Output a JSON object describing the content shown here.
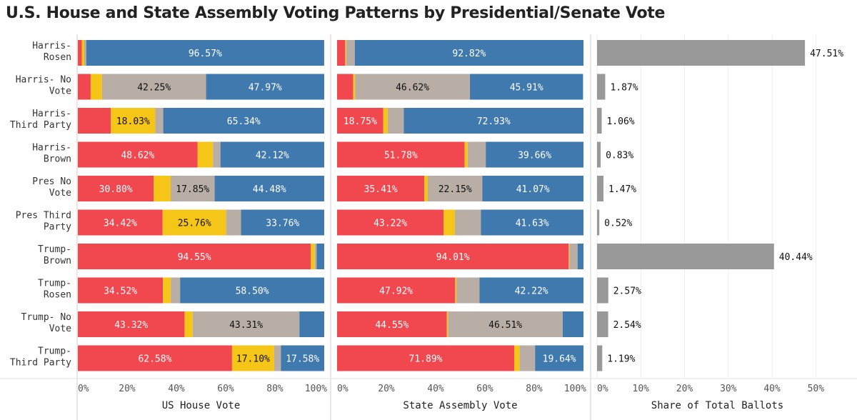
{
  "title": "U.S. House and State Assembly Voting Patterns by Presidential/Senate Vote",
  "colors": {
    "red": "#f1474f",
    "yellow": "#f5c518",
    "gray": "#b8aea6",
    "blue": "#3f79ad",
    "share": "#999999",
    "label_light": "#ffffff",
    "label_dark": "#111111"
  },
  "chart_data": {
    "type": "bar",
    "orientation": "horizontal",
    "categories": [
      [
        "Harris-",
        "Rosen"
      ],
      [
        "Harris- No",
        "Vote"
      ],
      [
        "Harris-",
        "Third Party"
      ],
      [
        "Harris-",
        "Brown"
      ],
      [
        "Pres No",
        "Vote"
      ],
      [
        "Pres Third",
        "Party"
      ],
      [
        "Trump-",
        "Brown"
      ],
      [
        "Trump-",
        "Rosen"
      ],
      [
        "Trump- No",
        "Vote"
      ],
      [
        "Trump-",
        "Third Party"
      ]
    ],
    "panels": [
      {
        "xlabel": "US House Vote",
        "ticks": [
          "0%",
          "20%",
          "40%",
          "60%",
          "80%",
          "100%"
        ],
        "xlim": [
          0,
          100
        ],
        "stacked": true,
        "rows": [
          [
            1.6,
            1.0,
            0.8,
            96.57
          ],
          [
            5.2,
            4.6,
            42.25,
            47.97
          ],
          [
            13.4,
            18.03,
            3.23,
            65.34
          ],
          [
            48.62,
            6.2,
            3.06,
            42.12
          ],
          [
            30.8,
            6.87,
            17.85,
            44.48
          ],
          [
            34.42,
            25.76,
            6.06,
            33.76
          ],
          [
            94.55,
            1.6,
            0.75,
            3.1
          ],
          [
            34.52,
            3.2,
            3.78,
            58.5
          ],
          [
            43.32,
            3.3,
            43.31,
            10.07
          ],
          [
            62.58,
            17.1,
            2.74,
            17.58
          ]
        ],
        "labels": [
          [
            "",
            "",
            "",
            "96.57%"
          ],
          [
            "",
            "",
            "42.25%",
            "47.97%"
          ],
          [
            "",
            "18.03%",
            "",
            "65.34%"
          ],
          [
            "48.62%",
            "",
            "",
            "42.12%"
          ],
          [
            "30.80%",
            "",
            "17.85%",
            "44.48%"
          ],
          [
            "34.42%",
            "25.76%",
            "",
            "33.76%"
          ],
          [
            "94.55%",
            "",
            "",
            ""
          ],
          [
            "34.52%",
            "",
            "",
            "58.50%"
          ],
          [
            "43.32%",
            "",
            "43.31%",
            ""
          ],
          [
            "62.58%",
            "17.10%",
            "",
            "17.58%"
          ]
        ]
      },
      {
        "xlabel": "State Assembly Vote",
        "ticks": [
          "0%",
          "20%",
          "40%",
          "60%",
          "80%",
          "100%"
        ],
        "xlim": [
          0,
          100
        ],
        "stacked": true,
        "rows": [
          [
            3.3,
            0.4,
            3.48,
            92.82
          ],
          [
            6.5,
            0.8,
            46.62,
            45.91
          ],
          [
            18.75,
            1.8,
            6.52,
            72.93
          ],
          [
            51.78,
            1.2,
            7.36,
            39.66
          ],
          [
            35.41,
            1.4,
            22.15,
            41.07
          ],
          [
            43.22,
            4.6,
            10.55,
            41.63
          ],
          [
            94.01,
            0.3,
            3.3,
            2.39
          ],
          [
            47.92,
            0.5,
            9.36,
            42.22
          ],
          [
            44.55,
            0.5,
            46.51,
            8.44
          ],
          [
            71.89,
            2.2,
            6.27,
            19.64
          ]
        ],
        "labels": [
          [
            "",
            "",
            "",
            "92.82%"
          ],
          [
            "",
            "",
            "46.62%",
            "45.91%"
          ],
          [
            "18.75%",
            "",
            "",
            "72.93%"
          ],
          [
            "51.78%",
            "",
            "",
            "39.66%"
          ],
          [
            "35.41%",
            "",
            "22.15%",
            "41.07%"
          ],
          [
            "43.22%",
            "",
            "",
            "41.63%"
          ],
          [
            "94.01%",
            "",
            "",
            ""
          ],
          [
            "47.92%",
            "",
            "",
            "42.22%"
          ],
          [
            "44.55%",
            "",
            "46.51%",
            ""
          ],
          [
            "71.89%",
            "",
            "",
            "19.64%"
          ]
        ]
      },
      {
        "xlabel": "Share of Total Ballots",
        "ticks": [
          "0%",
          "10%",
          "20%",
          "30%",
          "40%",
          "50%"
        ],
        "xlim": [
          0,
          55
        ],
        "stacked": false,
        "values": [
          47.51,
          1.87,
          1.06,
          0.83,
          1.47,
          0.52,
          40.44,
          2.57,
          2.54,
          1.19
        ],
        "labels": [
          "47.51%",
          "1.87%",
          "1.06%",
          "0.83%",
          "1.47%",
          "0.52%",
          "40.44%",
          "2.57%",
          "2.54%",
          "1.19%"
        ]
      }
    ],
    "grid": true,
    "legend": "none"
  }
}
